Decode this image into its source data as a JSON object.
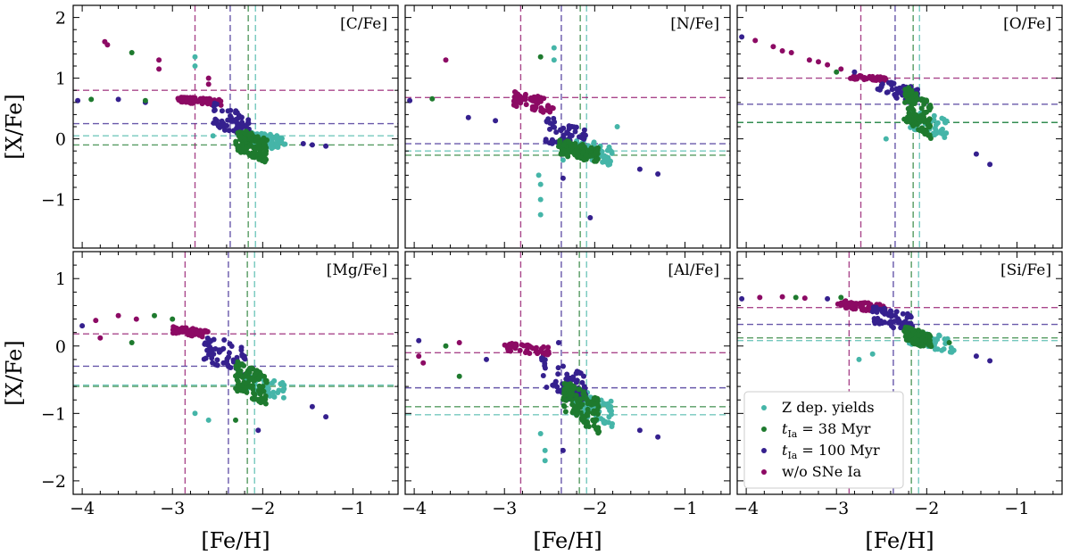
{
  "chart_data": {
    "type": "scatter",
    "xlabel": "[Fe/H]",
    "ylabel": "[X/Fe]",
    "xlim": [
      -4.1,
      -0.5
    ],
    "xticks": [
      -4,
      -3,
      -2,
      -1
    ],
    "rows": [
      {
        "ylim": [
          -1.8,
          2.2
        ],
        "yticks": [
          -1,
          0,
          1,
          2
        ]
      },
      {
        "ylim": [
          -2.2,
          1.4
        ],
        "yticks": [
          -2,
          -1,
          0,
          1
        ]
      }
    ],
    "series_styles": [
      {
        "key": "zdep",
        "name": "Z dep. yields",
        "color": "#45b5a8"
      },
      {
        "key": "t38",
        "name": "t_Ia = 38 Myr",
        "color": "#1e7a2e"
      },
      {
        "key": "t100",
        "name": "t_Ia = 100 Myr",
        "color": "#35208e"
      },
      {
        "key": "nosn",
        "name": "w/o SNe Ia",
        "color": "#8c0a64"
      }
    ],
    "legend": {
      "placement": "lower-left of [Si/Fe] panel",
      "items": [
        {
          "label": "Z dep. yields",
          "color": "#45b5a8"
        },
        {
          "label": "t",
          "sub": "Ia",
          "rest": " = 38 Myr",
          "color": "#1e7a2e"
        },
        {
          "label": "t",
          "sub": "Ia",
          "rest": " = 100 Myr",
          "color": "#35208e"
        },
        {
          "label": "w/o SNe Ia",
          "color": "#8c0a64"
        }
      ]
    },
    "panels": [
      {
        "title": "[C/Fe]",
        "row": 0,
        "col": 0,
        "vlines": {
          "nosn": -2.75,
          "t100": -2.36,
          "t38": -2.16,
          "zdep": -2.08
        },
        "hlines": {
          "nosn": 0.8,
          "t100": 0.25,
          "zdep": 0.05,
          "t38": -0.1
        },
        "groups": {
          "nosn": {
            "x": [
              -2.95,
              -2.45
            ],
            "y": [
              0.55,
              0.7
            ],
            "n": 70
          },
          "t100": {
            "x": [
              -2.55,
              -2.15
            ],
            "y": [
              0.0,
              0.6
            ],
            "n": 60
          },
          "t38": {
            "x": [
              -2.3,
              -1.95
            ],
            "y": [
              -0.4,
              0.2
            ],
            "n": 120
          },
          "zdep": {
            "x": [
              -2.2,
              -1.75
            ],
            "y": [
              -0.2,
              0.15
            ],
            "n": 60
          }
        },
        "extra": [
          {
            "s": "nosn",
            "x": -3.75,
            "y": 1.6
          },
          {
            "s": "nosn",
            "x": -3.72,
            "y": 1.55
          },
          {
            "s": "nosn",
            "x": -3.15,
            "y": 1.3
          },
          {
            "s": "nosn",
            "x": -3.15,
            "y": 1.15
          },
          {
            "s": "nosn",
            "x": -2.6,
            "y": 1.0
          },
          {
            "s": "nosn",
            "x": -2.6,
            "y": 0.9
          },
          {
            "s": "t38",
            "x": -3.45,
            "y": 1.42
          },
          {
            "s": "zdep",
            "x": -2.75,
            "y": 1.35
          },
          {
            "s": "zdep",
            "x": -2.75,
            "y": 1.2
          },
          {
            "s": "t100",
            "x": -4.05,
            "y": 0.63
          },
          {
            "s": "t100",
            "x": -3.6,
            "y": 0.65
          },
          {
            "s": "t100",
            "x": -3.3,
            "y": 0.6
          },
          {
            "s": "t100",
            "x": -1.55,
            "y": -0.08
          },
          {
            "s": "t100",
            "x": -1.45,
            "y": -0.1
          },
          {
            "s": "t100",
            "x": -1.3,
            "y": -0.12
          },
          {
            "s": "zdep",
            "x": -2.55,
            "y": 0.05
          },
          {
            "s": "t38",
            "x": -3.9,
            "y": 0.65
          },
          {
            "s": "t38",
            "x": -3.3,
            "y": 0.63
          }
        ]
      },
      {
        "title": "[N/Fe]",
        "row": 0,
        "col": 1,
        "vlines": {
          "nosn": -2.82,
          "t100": -2.37,
          "t38": -2.16,
          "zdep": -2.09
        },
        "hlines": {
          "nosn": 0.68,
          "t100": -0.08,
          "zdep": -0.2,
          "t38": -0.27
        },
        "groups": {
          "nosn": {
            "x": [
              -2.9,
              -2.45
            ],
            "y": [
              0.4,
              0.8
            ],
            "n": 55
          },
          "t100": {
            "x": [
              -2.55,
              -2.1
            ],
            "y": [
              -0.3,
              0.4
            ],
            "n": 60
          },
          "t38": {
            "x": [
              -2.4,
              -1.95
            ],
            "y": [
              -0.4,
              0.0
            ],
            "n": 110
          },
          "zdep": {
            "x": [
              -2.25,
              -1.8
            ],
            "y": [
              -0.45,
              0.05
            ],
            "n": 50
          }
        },
        "extra": [
          {
            "s": "nosn",
            "x": -3.65,
            "y": 1.3
          },
          {
            "s": "zdep",
            "x": -2.45,
            "y": 1.5
          },
          {
            "s": "zdep",
            "x": -2.45,
            "y": 1.3
          },
          {
            "s": "t38",
            "x": -2.6,
            "y": 1.35
          },
          {
            "s": "zdep",
            "x": -2.6,
            "y": -0.75
          },
          {
            "s": "zdep",
            "x": -2.6,
            "y": -1.0
          },
          {
            "s": "zdep",
            "x": -2.6,
            "y": -1.25
          },
          {
            "s": "zdep",
            "x": -2.62,
            "y": -0.6
          },
          {
            "s": "t100",
            "x": -2.35,
            "y": -0.65
          },
          {
            "s": "t100",
            "x": -2.05,
            "y": -1.3
          },
          {
            "s": "t100",
            "x": -1.5,
            "y": -0.5
          },
          {
            "s": "t100",
            "x": -1.3,
            "y": -0.58
          },
          {
            "s": "t100",
            "x": -4.05,
            "y": 0.63
          },
          {
            "s": "t100",
            "x": -3.4,
            "y": 0.35
          },
          {
            "s": "t100",
            "x": -3.1,
            "y": 0.3
          },
          {
            "s": "t38",
            "x": -3.8,
            "y": 0.66
          },
          {
            "s": "zdep",
            "x": -2.35,
            "y": -0.35
          },
          {
            "s": "zdep",
            "x": -1.75,
            "y": 0.2
          }
        ]
      },
      {
        "title": "[O/Fe]",
        "row": 0,
        "col": 2,
        "vlines": {
          "nosn": -2.73,
          "t100": -2.35,
          "t38": -2.15,
          "zdep": -2.08
        },
        "hlines": {
          "nosn": 1.0,
          "t100": 0.57,
          "zdep": 0.27,
          "t38": 0.27
        },
        "groups": {
          "nosn": {
            "x": [
              -2.85,
              -2.45
            ],
            "y": [
              0.95,
              1.05
            ],
            "n": 40
          },
          "t100": {
            "x": [
              -2.55,
              -2.1
            ],
            "y": [
              0.6,
              1.0
            ],
            "n": 60
          },
          "t38": {
            "x": [
              -2.25,
              -1.95
            ],
            "y": [
              0.0,
              0.9
            ],
            "n": 110
          },
          "zdep": {
            "x": [
              -2.2,
              -1.75
            ],
            "y": [
              0.0,
              0.5
            ],
            "n": 50
          }
        },
        "extra": [
          {
            "s": "t100",
            "x": -4.05,
            "y": 1.68
          },
          {
            "s": "nosn",
            "x": -3.9,
            "y": 1.62
          },
          {
            "s": "nosn",
            "x": -3.7,
            "y": 1.52
          },
          {
            "s": "nosn",
            "x": -3.5,
            "y": 1.42
          },
          {
            "s": "nosn",
            "x": -3.3,
            "y": 1.3
          },
          {
            "s": "nosn",
            "x": -3.1,
            "y": 1.22
          },
          {
            "s": "nosn",
            "x": -2.95,
            "y": 1.15
          },
          {
            "s": "t38",
            "x": -3.0,
            "y": 1.1
          },
          {
            "s": "t100",
            "x": -2.8,
            "y": 1.1
          },
          {
            "s": "t100",
            "x": -1.45,
            "y": -0.25
          },
          {
            "s": "t100",
            "x": -1.3,
            "y": -0.42
          },
          {
            "s": "zdep",
            "x": -2.45,
            "y": 0.0
          },
          {
            "s": "nosn",
            "x": -3.6,
            "y": 1.45
          },
          {
            "s": "nosn",
            "x": -3.2,
            "y": 1.27
          }
        ]
      },
      {
        "title": "[Mg/Fe]",
        "row": 1,
        "col": 0,
        "vlines": {
          "nosn": -2.86,
          "t100": -2.38,
          "t38": -2.17,
          "zdep": -2.09
        },
        "hlines": {
          "nosn": 0.18,
          "t100": -0.3,
          "zdep": -0.58,
          "t38": -0.6
        },
        "groups": {
          "nosn": {
            "x": [
              -3.0,
              -2.6
            ],
            "y": [
              0.12,
              0.3
            ],
            "n": 50
          },
          "t100": {
            "x": [
              -2.65,
              -2.15
            ],
            "y": [
              -0.5,
              0.2
            ],
            "n": 60
          },
          "t38": {
            "x": [
              -2.3,
              -1.95
            ],
            "y": [
              -0.9,
              -0.2
            ],
            "n": 110
          },
          "zdep": {
            "x": [
              -2.2,
              -1.75
            ],
            "y": [
              -0.8,
              -0.4
            ],
            "n": 50
          }
        },
        "extra": [
          {
            "s": "t100",
            "x": -4.0,
            "y": 0.3
          },
          {
            "s": "nosn",
            "x": -3.85,
            "y": 0.38
          },
          {
            "s": "nosn",
            "x": -3.6,
            "y": 0.45
          },
          {
            "s": "nosn",
            "x": -3.4,
            "y": 0.4
          },
          {
            "s": "t38",
            "x": -3.2,
            "y": 0.45
          },
          {
            "s": "t38",
            "x": -3.45,
            "y": 0.05
          },
          {
            "s": "nosn",
            "x": -3.8,
            "y": 0.12
          },
          {
            "s": "zdep",
            "x": -2.75,
            "y": -1.0
          },
          {
            "s": "zdep",
            "x": -2.6,
            "y": -1.1
          },
          {
            "s": "t38",
            "x": -2.3,
            "y": -1.1
          },
          {
            "s": "t100",
            "x": -2.05,
            "y": -1.25
          },
          {
            "s": "t100",
            "x": -1.45,
            "y": -0.9
          },
          {
            "s": "t100",
            "x": -1.3,
            "y": -1.05
          },
          {
            "s": "t38",
            "x": -3.0,
            "y": 0.4
          }
        ]
      },
      {
        "title": "[Al/Fe]",
        "row": 1,
        "col": 1,
        "vlines": {
          "nosn": -2.82,
          "t100": -2.37,
          "t38": -2.17,
          "zdep": -2.09
        },
        "hlines": {
          "nosn": -0.1,
          "t100": -0.62,
          "t38": -0.9,
          "zdep": -1.02
        },
        "groups": {
          "nosn": {
            "x": [
              -3.0,
              -2.5
            ],
            "y": [
              -0.15,
              0.05
            ],
            "n": 50
          },
          "t100": {
            "x": [
              -2.6,
              -2.1
            ],
            "y": [
              -0.9,
              -0.1
            ],
            "n": 60
          },
          "t38": {
            "x": [
              -2.35,
              -1.95
            ],
            "y": [
              -1.3,
              -0.5
            ],
            "n": 110
          },
          "zdep": {
            "x": [
              -2.25,
              -1.8
            ],
            "y": [
              -1.2,
              -0.6
            ],
            "n": 50
          }
        },
        "extra": [
          {
            "s": "nosn",
            "x": -3.95,
            "y": -0.15
          },
          {
            "s": "nosn",
            "x": -3.9,
            "y": -0.25
          },
          {
            "s": "t100",
            "x": -3.95,
            "y": 0.08
          },
          {
            "s": "nosn",
            "x": -3.5,
            "y": 0.05
          },
          {
            "s": "t38",
            "x": -3.5,
            "y": -0.45
          },
          {
            "s": "t38",
            "x": -3.65,
            "y": 0.0
          },
          {
            "s": "zdep",
            "x": -2.6,
            "y": -1.3
          },
          {
            "s": "zdep",
            "x": -2.55,
            "y": -1.7
          },
          {
            "s": "zdep",
            "x": -2.55,
            "y": -1.55
          },
          {
            "s": "t100",
            "x": -2.35,
            "y": -1.55
          },
          {
            "s": "t100",
            "x": -1.5,
            "y": -1.25
          },
          {
            "s": "t100",
            "x": -1.3,
            "y": -1.35
          },
          {
            "s": "t100",
            "x": -3.2,
            "y": -0.2
          },
          {
            "s": "t100",
            "x": -2.4,
            "y": 0.05
          }
        ]
      },
      {
        "title": "[Si/Fe]",
        "row": 1,
        "col": 2,
        "vlines": {
          "nosn": -2.86,
          "t100": -2.37,
          "t38": -2.17,
          "zdep": -2.09
        },
        "hlines": {
          "nosn": 0.57,
          "t100": 0.32,
          "t38": 0.12,
          "zdep": 0.08
        },
        "groups": {
          "nosn": {
            "x": [
              -3.0,
              -2.45
            ],
            "y": [
              0.5,
              0.68
            ],
            "n": 50
          },
          "t100": {
            "x": [
              -2.6,
              -2.15
            ],
            "y": [
              0.2,
              0.6
            ],
            "n": 60
          },
          "t38": {
            "x": [
              -2.25,
              -1.95
            ],
            "y": [
              -0.05,
              0.3
            ],
            "n": 110
          },
          "zdep": {
            "x": [
              -2.2,
              -1.7
            ],
            "y": [
              -0.1,
              0.25
            ],
            "n": 50
          }
        },
        "extra": [
          {
            "s": "t100",
            "x": -4.05,
            "y": 0.7
          },
          {
            "s": "nosn",
            "x": -3.85,
            "y": 0.72
          },
          {
            "s": "nosn",
            "x": -3.6,
            "y": 0.73
          },
          {
            "s": "nosn",
            "x": -3.35,
            "y": 0.71
          },
          {
            "s": "t38",
            "x": -3.45,
            "y": 0.72
          },
          {
            "s": "t100",
            "x": -3.1,
            "y": 0.7
          },
          {
            "s": "zdep",
            "x": -2.75,
            "y": -0.2
          },
          {
            "s": "zdep",
            "x": -2.6,
            "y": -0.12
          },
          {
            "s": "t100",
            "x": -1.45,
            "y": -0.15
          },
          {
            "s": "t100",
            "x": -1.3,
            "y": -0.22
          },
          {
            "s": "t38",
            "x": -1.75,
            "y": 0.05
          },
          {
            "s": "t38",
            "x": -2.95,
            "y": 0.72
          }
        ]
      }
    ]
  }
}
